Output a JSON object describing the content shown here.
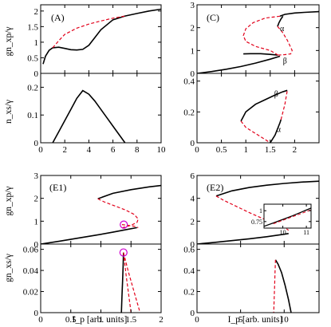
{
  "colors": {
    "stable": "#000000",
    "unstable": "#e2001a",
    "marker": "#d000d0"
  },
  "chart_data": [
    {
      "type": "line",
      "panel_label": "(A)",
      "xlim": [
        0,
        10
      ],
      "ylim": [
        0,
        2.2
      ],
      "xticks": [
        0,
        2,
        4,
        6,
        8,
        10
      ],
      "yticks": [
        0,
        0.5,
        1,
        1.5,
        2
      ],
      "ylabel": "gn_xp/γ",
      "series": [
        {
          "style": "solid",
          "x": [
            0.2,
            0.4,
            0.7,
            1.0,
            1.5,
            2.0,
            2.5,
            3.0,
            3.5,
            4.0,
            4.5,
            5.0,
            6.0,
            7.0,
            8.0,
            9.0,
            10.0
          ],
          "y": [
            0.3,
            0.55,
            0.74,
            0.82,
            0.84,
            0.8,
            0.76,
            0.75,
            0.77,
            0.9,
            1.15,
            1.4,
            1.72,
            1.84,
            1.92,
            2.0,
            2.06
          ]
        },
        {
          "style": "dashed",
          "x": [
            1.0,
            1.5,
            2.0,
            3.0,
            4.0,
            5.0,
            6.0,
            7.0
          ],
          "y": [
            0.82,
            1.05,
            1.25,
            1.45,
            1.58,
            1.68,
            1.77,
            1.84
          ]
        }
      ]
    },
    {
      "type": "line",
      "xlim": [
        0,
        10
      ],
      "ylim": [
        0,
        0.25
      ],
      "xticks": [
        0,
        2,
        4,
        6,
        8,
        10
      ],
      "xticklabels": [
        "0",
        "2",
        "4",
        "6",
        "8",
        "10"
      ],
      "yticks": [
        0,
        0.1,
        0.2
      ],
      "yticklabels": [
        "0",
        "0.1",
        "0.2"
      ],
      "ylabel": "n_xs/γ",
      "series": [
        {
          "style": "solid",
          "x": [
            1.0,
            1.5,
            2.0,
            2.5,
            3.0,
            3.5,
            4.0,
            4.5,
            5.0,
            5.5,
            6.0,
            6.5,
            7.0
          ],
          "y": [
            0.0,
            0.04,
            0.08,
            0.12,
            0.16,
            0.188,
            0.175,
            0.15,
            0.12,
            0.09,
            0.06,
            0.03,
            0.0
          ]
        }
      ]
    },
    {
      "type": "line",
      "panel_label": "(C)",
      "xlim": [
        0,
        2.5
      ],
      "ylim": [
        0,
        3
      ],
      "xticks": [
        0,
        0.5,
        1,
        1.5,
        2
      ],
      "yticks": [
        0,
        1,
        2,
        3
      ],
      "annotations": [
        {
          "text": "α",
          "x": 1.7,
          "y": 1.85
        },
        {
          "text": "β",
          "x": 1.76,
          "y": 0.43
        }
      ],
      "series": [
        {
          "style": "solid",
          "x": [
            0.0,
            0.3,
            0.6,
            0.9,
            1.2,
            1.5,
            1.7
          ],
          "y": [
            0.0,
            0.08,
            0.18,
            0.3,
            0.45,
            0.62,
            0.75
          ]
        },
        {
          "style": "solid",
          "x": [
            1.7,
            1.8,
            2.0,
            2.2,
            2.5
          ],
          "y": [
            2.5,
            2.58,
            2.64,
            2.67,
            2.7
          ]
        },
        {
          "style": "solid",
          "x": [
            0.95,
            1.1,
            1.3,
            1.5,
            1.65
          ],
          "y": [
            0.85,
            0.86,
            0.86,
            0.83,
            0.8
          ]
        },
        {
          "style": "solid",
          "x": [
            1.65,
            1.68,
            1.72,
            1.76
          ],
          "y": [
            2.05,
            2.22,
            2.38,
            2.5
          ]
        },
        {
          "style": "dashed",
          "x": [
            1.7,
            1.4,
            1.15,
            1.0,
            0.95,
            1.0,
            1.2,
            1.5,
            1.7
          ],
          "y": [
            2.5,
            2.42,
            2.22,
            1.95,
            1.65,
            1.4,
            1.18,
            1.0,
            0.75
          ]
        },
        {
          "style": "dashed",
          "x": [
            1.65,
            1.75,
            1.85,
            1.95,
            1.92,
            1.8,
            1.65
          ],
          "y": [
            2.05,
            1.8,
            1.45,
            1.0,
            0.85,
            0.82,
            0.8
          ]
        }
      ]
    },
    {
      "type": "line",
      "xlim": [
        0,
        2.5
      ],
      "ylim": [
        0,
        0.45
      ],
      "xticks": [
        0,
        0.5,
        1,
        1.5,
        2
      ],
      "xticklabels": [
        "0",
        "0.5",
        "1",
        "1.5",
        "2"
      ],
      "yticks": [
        0,
        0.2,
        0.4
      ],
      "yticklabels": [
        "0",
        "0.2",
        "0.4"
      ],
      "annotations": [
        {
          "text": "β",
          "x": 1.58,
          "y": 0.3
        },
        {
          "text": "α",
          "x": 1.63,
          "y": 0.07
        }
      ],
      "series": [
        {
          "style": "solid",
          "x": [
            0.9,
            1.0,
            1.2,
            1.4,
            1.6,
            1.75,
            1.85
          ],
          "y": [
            0.14,
            0.2,
            0.25,
            0.28,
            0.31,
            0.33,
            0.34
          ]
        },
        {
          "style": "dashed",
          "x": [
            0.9,
            1.0,
            1.2,
            1.4,
            1.5
          ],
          "y": [
            0.14,
            0.1,
            0.06,
            0.02,
            0.0
          ]
        },
        {
          "style": "solid",
          "x": [
            1.5,
            1.6,
            1.7,
            1.72
          ],
          "y": [
            0.0,
            0.05,
            0.13,
            0.15
          ]
        },
        {
          "style": "dashed",
          "x": [
            1.72,
            1.8,
            1.85
          ],
          "y": [
            0.15,
            0.25,
            0.34
          ]
        }
      ]
    },
    {
      "type": "line",
      "panel_label": "(E1)",
      "xlim": [
        0,
        2
      ],
      "ylim": [
        0,
        3
      ],
      "xticks": [
        0,
        0.5,
        1,
        1.5,
        2
      ],
      "yticks": [
        0,
        1,
        2,
        3
      ],
      "ylabel": "gn_xp/γ",
      "marker": {
        "x": 1.38,
        "y": 0.85
      },
      "series": [
        {
          "style": "solid",
          "x": [
            0.0,
            0.3,
            0.6,
            0.9,
            1.2,
            1.4,
            1.6
          ],
          "y": [
            0.0,
            0.12,
            0.25,
            0.38,
            0.52,
            0.62,
            0.72
          ]
        },
        {
          "style": "solid",
          "x": [
            0.95,
            1.2,
            1.5,
            1.8,
            2.0
          ],
          "y": [
            1.98,
            2.22,
            2.38,
            2.5,
            2.56
          ]
        },
        {
          "style": "dashed",
          "x": [
            0.95,
            1.05,
            1.2,
            1.4,
            1.55,
            1.62,
            1.6,
            1.5,
            1.4,
            1.35
          ],
          "y": [
            1.98,
            1.85,
            1.7,
            1.5,
            1.3,
            1.1,
            0.95,
            0.82,
            0.75,
            0.7
          ]
        },
        {
          "style": "dashed",
          "x": [
            1.35,
            1.45,
            1.55,
            1.62
          ],
          "y": [
            0.85,
            0.82,
            0.78,
            0.72
          ]
        }
      ]
    },
    {
      "type": "line",
      "xlim": [
        0,
        2
      ],
      "ylim": [
        0,
        0.065
      ],
      "xticks": [
        0,
        0.5,
        1,
        1.5,
        2
      ],
      "xticklabels": [
        "0",
        "0.5",
        "1",
        "1.5",
        "2"
      ],
      "yticks": [
        0,
        0.02,
        0.04,
        0.06
      ],
      "yticklabels": [
        "0",
        "0.02",
        "0.04",
        "0.06"
      ],
      "ylabel": "gn_xs/γ",
      "xlabel": "I_p [arb. units]",
      "marker": {
        "x": 1.375,
        "y": 0.057
      },
      "series": [
        {
          "style": "solid",
          "x": [
            1.375,
            1.37,
            1.36,
            1.35,
            1.34
          ],
          "y": [
            0.057,
            0.045,
            0.03,
            0.015,
            0.0
          ]
        },
        {
          "style": "dashed",
          "x": [
            1.375,
            1.45,
            1.55,
            1.65
          ],
          "y": [
            0.057,
            0.04,
            0.02,
            0.0
          ]
        },
        {
          "style": "dashed",
          "x": [
            1.375,
            1.42,
            1.5
          ],
          "y": [
            0.057,
            0.035,
            0.0
          ]
        }
      ]
    },
    {
      "type": "line",
      "panel_label": "(E2)",
      "xlim": [
        0,
        14
      ],
      "ylim": [
        0,
        6
      ],
      "xticks": [
        0,
        5,
        10
      ],
      "yticks": [
        0,
        2,
        4,
        6
      ],
      "series": [
        {
          "style": "solid",
          "x": [
            0.0,
            2.0,
            4.0,
            6.0,
            8.0,
            10.0,
            10.5
          ],
          "y": [
            0.0,
            0.15,
            0.3,
            0.46,
            0.64,
            0.86,
            0.92
          ]
        },
        {
          "style": "solid",
          "x": [
            2.2,
            4.0,
            6.0,
            8.0,
            10.0,
            12.0,
            14.0
          ],
          "y": [
            4.2,
            4.65,
            4.95,
            5.15,
            5.3,
            5.42,
            5.5
          ]
        },
        {
          "style": "dashed",
          "x": [
            2.2,
            3.0,
            4.5,
            6.0,
            7.5,
            9.0,
            10.0,
            10.5
          ],
          "y": [
            4.2,
            3.85,
            3.3,
            2.75,
            2.25,
            1.8,
            1.5,
            1.2
          ]
        }
      ],
      "inset": {
        "xlim": [
          9.2,
          11.2
        ],
        "ylim": [
          0.6,
          1.15
        ],
        "xticks": [
          10,
          11
        ],
        "yticks": [
          0.75,
          1
        ],
        "yticklabels": [
          "0.75",
          "1"
        ],
        "series": [
          {
            "style": "solid",
            "x": [
              9.2,
              9.6,
              10.0,
              10.4,
              10.8,
              11.2
            ],
            "y": [
              0.64,
              0.72,
              0.8,
              0.88,
              0.97,
              1.06
            ]
          },
          {
            "style": "dashed",
            "x": [
              9.6,
              10.0,
              10.4,
              10.8,
              11.2
            ],
            "y": [
              0.7,
              0.78,
              0.86,
              0.94,
              1.02
            ]
          }
        ]
      }
    },
    {
      "type": "line",
      "xlim": [
        0,
        14
      ],
      "ylim": [
        0,
        0.65
      ],
      "xticks": [
        0,
        5,
        10
      ],
      "xticklabels": [
        "0",
        "5",
        "10"
      ],
      "yticks": [
        0,
        0.2,
        0.4,
        0.6
      ],
      "yticklabels": [
        "0",
        "0.2",
        "0.4",
        "0.6"
      ],
      "xlabel": "I_p [arb. units]",
      "series": [
        {
          "style": "solid",
          "x": [
            9.0,
            9.3,
            9.7,
            10.1,
            10.5,
            10.8
          ],
          "y": [
            0.5,
            0.46,
            0.38,
            0.26,
            0.12,
            0.0
          ]
        },
        {
          "style": "dashed",
          "x": [
            9.0,
            8.95,
            8.9,
            8.85,
            8.8
          ],
          "y": [
            0.5,
            0.38,
            0.25,
            0.12,
            0.0
          ]
        }
      ]
    }
  ]
}
